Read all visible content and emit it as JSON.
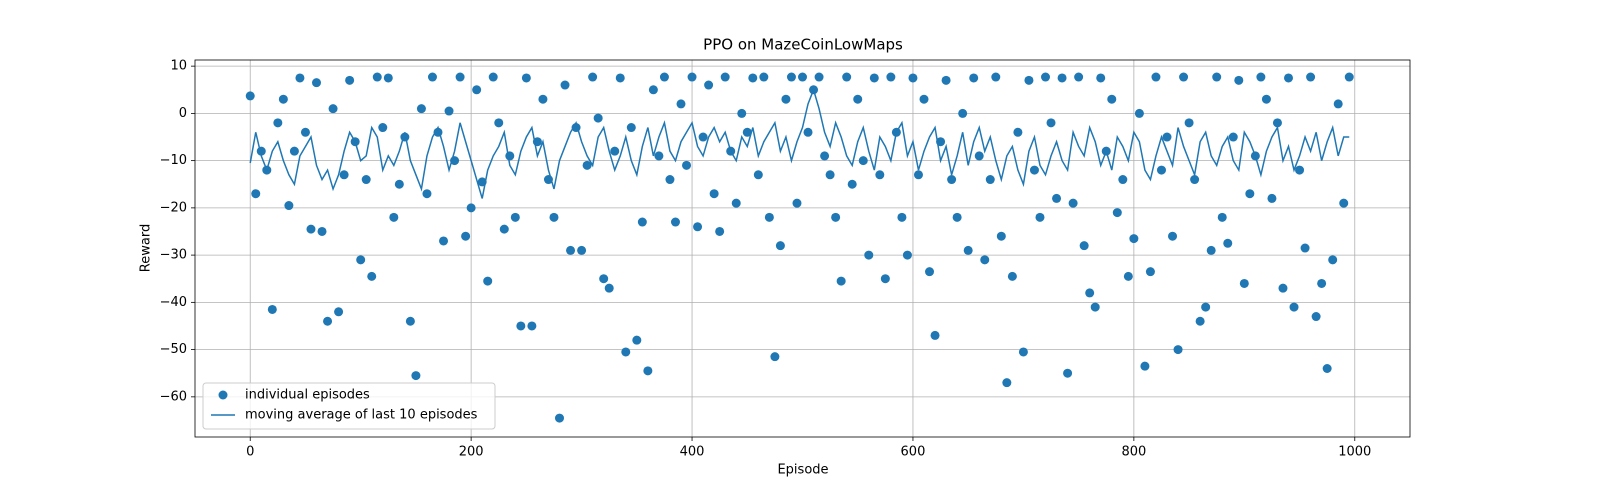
{
  "chart_data": {
    "type": "scatter",
    "title": "PPO on MazeCoinLowMaps",
    "xlabel": "Episode",
    "ylabel": "Reward",
    "xlim": [
      -50,
      1050
    ],
    "ylim": [
      -68.5,
      11.3
    ],
    "xticks": [
      0,
      200,
      400,
      600,
      800,
      1000
    ],
    "yticks": [
      {
        "value": -60,
        "label": "−60"
      },
      {
        "value": -50,
        "label": "−50"
      },
      {
        "value": -40,
        "label": "−40"
      },
      {
        "value": -30,
        "label": "−30"
      },
      {
        "value": -20,
        "label": "−20"
      },
      {
        "value": -10,
        "label": "−10"
      },
      0,
      10
    ],
    "grid": true,
    "legend": "lower left",
    "x": [
      0,
      5,
      10,
      15,
      20,
      25,
      30,
      35,
      40,
      45,
      50,
      55,
      60,
      65,
      70,
      75,
      80,
      85,
      90,
      95,
      100,
      105,
      110,
      115,
      120,
      125,
      130,
      135,
      140,
      145,
      150,
      155,
      160,
      165,
      170,
      175,
      180,
      185,
      190,
      195,
      200,
      205,
      210,
      215,
      220,
      225,
      230,
      235,
      240,
      245,
      250,
      255,
      260,
      265,
      270,
      275,
      280,
      285,
      290,
      295,
      300,
      305,
      310,
      315,
      320,
      325,
      330,
      335,
      340,
      345,
      350,
      355,
      360,
      365,
      370,
      375,
      380,
      385,
      390,
      395,
      400,
      405,
      410,
      415,
      420,
      425,
      430,
      435,
      440,
      445,
      450,
      455,
      460,
      465,
      470,
      475,
      480,
      485,
      490,
      495,
      500,
      505,
      510,
      515,
      520,
      525,
      530,
      535,
      540,
      545,
      550,
      555,
      560,
      565,
      570,
      575,
      580,
      585,
      590,
      595,
      600,
      605,
      610,
      615,
      620,
      625,
      630,
      635,
      640,
      645,
      650,
      655,
      660,
      665,
      670,
      675,
      680,
      685,
      690,
      695,
      700,
      705,
      710,
      715,
      720,
      725,
      730,
      735,
      740,
      745,
      750,
      755,
      760,
      765,
      770,
      775,
      780,
      785,
      790,
      795,
      800,
      805,
      810,
      815,
      820,
      825,
      830,
      835,
      840,
      845,
      850,
      855,
      860,
      865,
      870,
      875,
      880,
      885,
      890,
      895,
      900,
      905,
      910,
      915,
      920,
      925,
      930,
      935,
      940,
      945,
      950,
      955,
      960,
      965,
      970,
      975,
      980,
      985,
      990,
      995
    ],
    "series": [
      {
        "name": "individual episodes",
        "type": "scatter",
        "color": "#1f77b4",
        "values": [
          3.7,
          -17,
          -8,
          -12,
          -41.5,
          -2,
          3,
          -19.5,
          -8,
          7.5,
          -4,
          -24.5,
          6.5,
          -25,
          -44,
          1,
          -42,
          -13,
          7,
          -6,
          -31,
          -14,
          -34.5,
          7.7,
          -3,
          7.5,
          -22,
          -15,
          -5,
          -44,
          -55.5,
          1,
          -17,
          7.7,
          -4,
          -27,
          0.5,
          -10,
          7.7,
          -26,
          -20,
          5,
          -14.5,
          -35.5,
          7.7,
          -2,
          -24.5,
          -9,
          -22,
          -45,
          7.5,
          -45,
          -6,
          3,
          -14,
          -22,
          -64.5,
          6,
          -29,
          -3,
          -29,
          -11,
          7.7,
          -1,
          -35,
          -37,
          -8,
          7.5,
          -50.5,
          -3,
          -48,
          -23,
          -54.5,
          5,
          -9,
          7.7,
          -14,
          -23,
          2,
          -11,
          7.7,
          -24,
          -5,
          6,
          -17,
          -25,
          7.7,
          -8,
          -19,
          0,
          -4,
          7.5,
          -13,
          7.7,
          -22,
          -51.5,
          -28,
          3,
          7.7,
          -19,
          7.7,
          -4,
          5,
          7.7,
          -9,
          -13,
          -22,
          -35.5,
          7.7,
          -15,
          3,
          -10,
          -30,
          7.5,
          -13,
          -35,
          7.7,
          -4,
          -22,
          -30,
          7.5,
          -13,
          3,
          -33.5,
          -47,
          -6,
          7,
          -14,
          -22,
          0,
          -29,
          7.5,
          -9,
          -31,
          -14,
          7.7,
          -26,
          -57,
          -34.5,
          -4,
          -50.5,
          7,
          -12,
          -22,
          7.7,
          -2,
          -18,
          7.5,
          -55,
          -19,
          7.7,
          -28,
          -38,
          -41,
          7.5,
          -8,
          3,
          -21,
          -14,
          -34.5,
          -26.5,
          0,
          -53.5,
          -33.5,
          7.7,
          -12,
          -5,
          -26,
          -50,
          7.7,
          -2,
          -14,
          -44,
          -41,
          -29,
          7.7,
          -22,
          -27.5,
          -5,
          7,
          -36,
          -17,
          -9,
          7.7,
          3,
          -18,
          -2,
          -37,
          7.5,
          -41,
          -12,
          -28.5,
          7.7,
          -43,
          -36,
          -54,
          -31,
          2,
          -19,
          7.7
        ]
      },
      {
        "name": "moving average of last 10 episodes",
        "type": "line",
        "color": "#1f77b4",
        "values": [
          -10.5,
          -4,
          -9,
          -12,
          -8,
          -6,
          -10,
          -13,
          -15,
          -9,
          -7,
          -5,
          -11,
          -14,
          -12,
          -16,
          -13,
          -8,
          -4,
          -6,
          -10,
          -9,
          -3,
          -5,
          -12,
          -9,
          -11,
          -8,
          -4,
          -10,
          -13,
          -16,
          -9,
          -5,
          -3,
          -7,
          -12,
          -8,
          -2,
          -6,
          -10,
          -14,
          -18,
          -12,
          -9,
          -7,
          -4,
          -11,
          -13,
          -8,
          -5,
          -3,
          -9,
          -6,
          -12,
          -16,
          -10,
          -7,
          -4,
          -2,
          -6,
          -9,
          -11,
          -5,
          -3,
          -8,
          -12,
          -9,
          -5,
          -10,
          -13,
          -7,
          -3,
          -9,
          -5,
          -2,
          -8,
          -10,
          -6,
          -4,
          -2,
          -7,
          -9,
          -5,
          -3,
          -6,
          -4,
          -8,
          -10,
          -5,
          -7,
          -3,
          -9,
          -6,
          -4,
          -2,
          -8,
          -5,
          -10,
          -6,
          -3,
          2,
          5,
          1,
          -4,
          -7,
          -2,
          -5,
          -9,
          -11,
          -6,
          -3,
          -8,
          -12,
          -5,
          -7,
          -10,
          -4,
          -2,
          -9,
          -6,
          -12,
          -8,
          -5,
          -3,
          -10,
          -7,
          -13,
          -9,
          -4,
          -11,
          -6,
          -3,
          -8,
          -5,
          -10,
          -14,
          -9,
          -7,
          -12,
          -15,
          -8,
          -5,
          -11,
          -13,
          -9,
          -6,
          -10,
          -12,
          -4,
          -7,
          -9,
          -3,
          -6,
          -11,
          -8,
          -12,
          -5,
          -7,
          -10,
          -4,
          -6,
          -12,
          -14,
          -9,
          -5,
          -8,
          -11,
          -3,
          -7,
          -10,
          -13,
          -6,
          -4,
          -9,
          -11,
          -7,
          -5,
          -10,
          -12,
          -4,
          -6,
          -9,
          -13,
          -8,
          -5,
          -3,
          -10,
          -7,
          -12,
          -9,
          -5,
          -8,
          -4,
          -10,
          -6,
          -3,
          -9,
          -5,
          -5
        ]
      }
    ]
  }
}
